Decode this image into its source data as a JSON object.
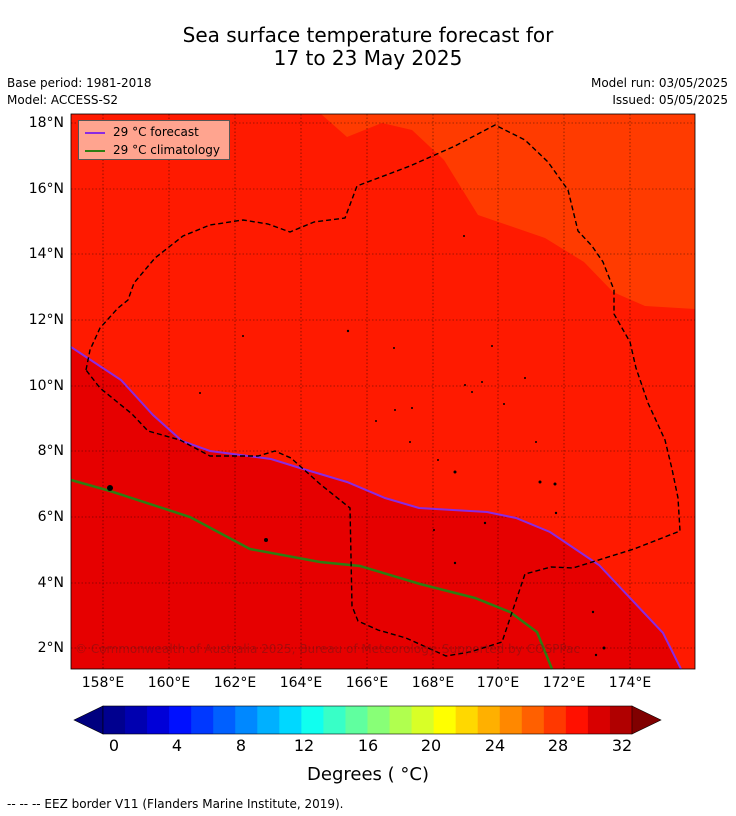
{
  "title": {
    "line1": "Sea surface temperature forecast for",
    "line2": "17 to 23 May 2025"
  },
  "meta": {
    "base_period": "Base period: 1981-2018",
    "model": "Model: ACCESS-S2",
    "model_run": "Model run: 03/05/2025",
    "issued": "Issued: 05/05/2025"
  },
  "legend": {
    "forecast": "29 °C  forecast",
    "climatology": "29 °C  climatology",
    "forecast_color": "#8a2be2",
    "climatology_color": "#2e7d12"
  },
  "axes": {
    "lat_labels": [
      "18°N",
      "16°N",
      "14°N",
      "12°N",
      "10°N",
      "8°N",
      "6°N",
      "4°N",
      "2°N"
    ],
    "lon_labels": [
      "158°E",
      "160°E",
      "162°E",
      "164°E",
      "166°E",
      "168°E",
      "170°E",
      "172°E",
      "174°E"
    ]
  },
  "colorbar": {
    "ticks": [
      "0",
      "4",
      "8",
      "12",
      "16",
      "20",
      "24",
      "28",
      "32"
    ],
    "title": "Degrees ( °C)",
    "colors": [
      "#00008f",
      "#0000b0",
      "#0000d8",
      "#0010ff",
      "#0038ff",
      "#0060ff",
      "#0088ff",
      "#00b0ff",
      "#00d8ff",
      "#10ffef",
      "#38ffc7",
      "#60ff9f",
      "#88ff77",
      "#b0ff4f",
      "#d8ff27",
      "#ffff00",
      "#ffd800",
      "#ffb000",
      "#ff8800",
      "#ff6000",
      "#ff3800",
      "#ff1000",
      "#d80000",
      "#b00000"
    ],
    "under_color": "#00007f",
    "over_color": "#800000"
  },
  "regions": {
    "warm_color": "#e60000",
    "mid_color": "#ff1a00",
    "cool_color": "#ff3b00"
  },
  "copyright": "© Commonwealth of Australia 2025, Bureau of Meteorology. Supported by COSPPac",
  "footer": "-- -- -- EEZ border V11 (Flanders Marine Institute, 2019)."
}
